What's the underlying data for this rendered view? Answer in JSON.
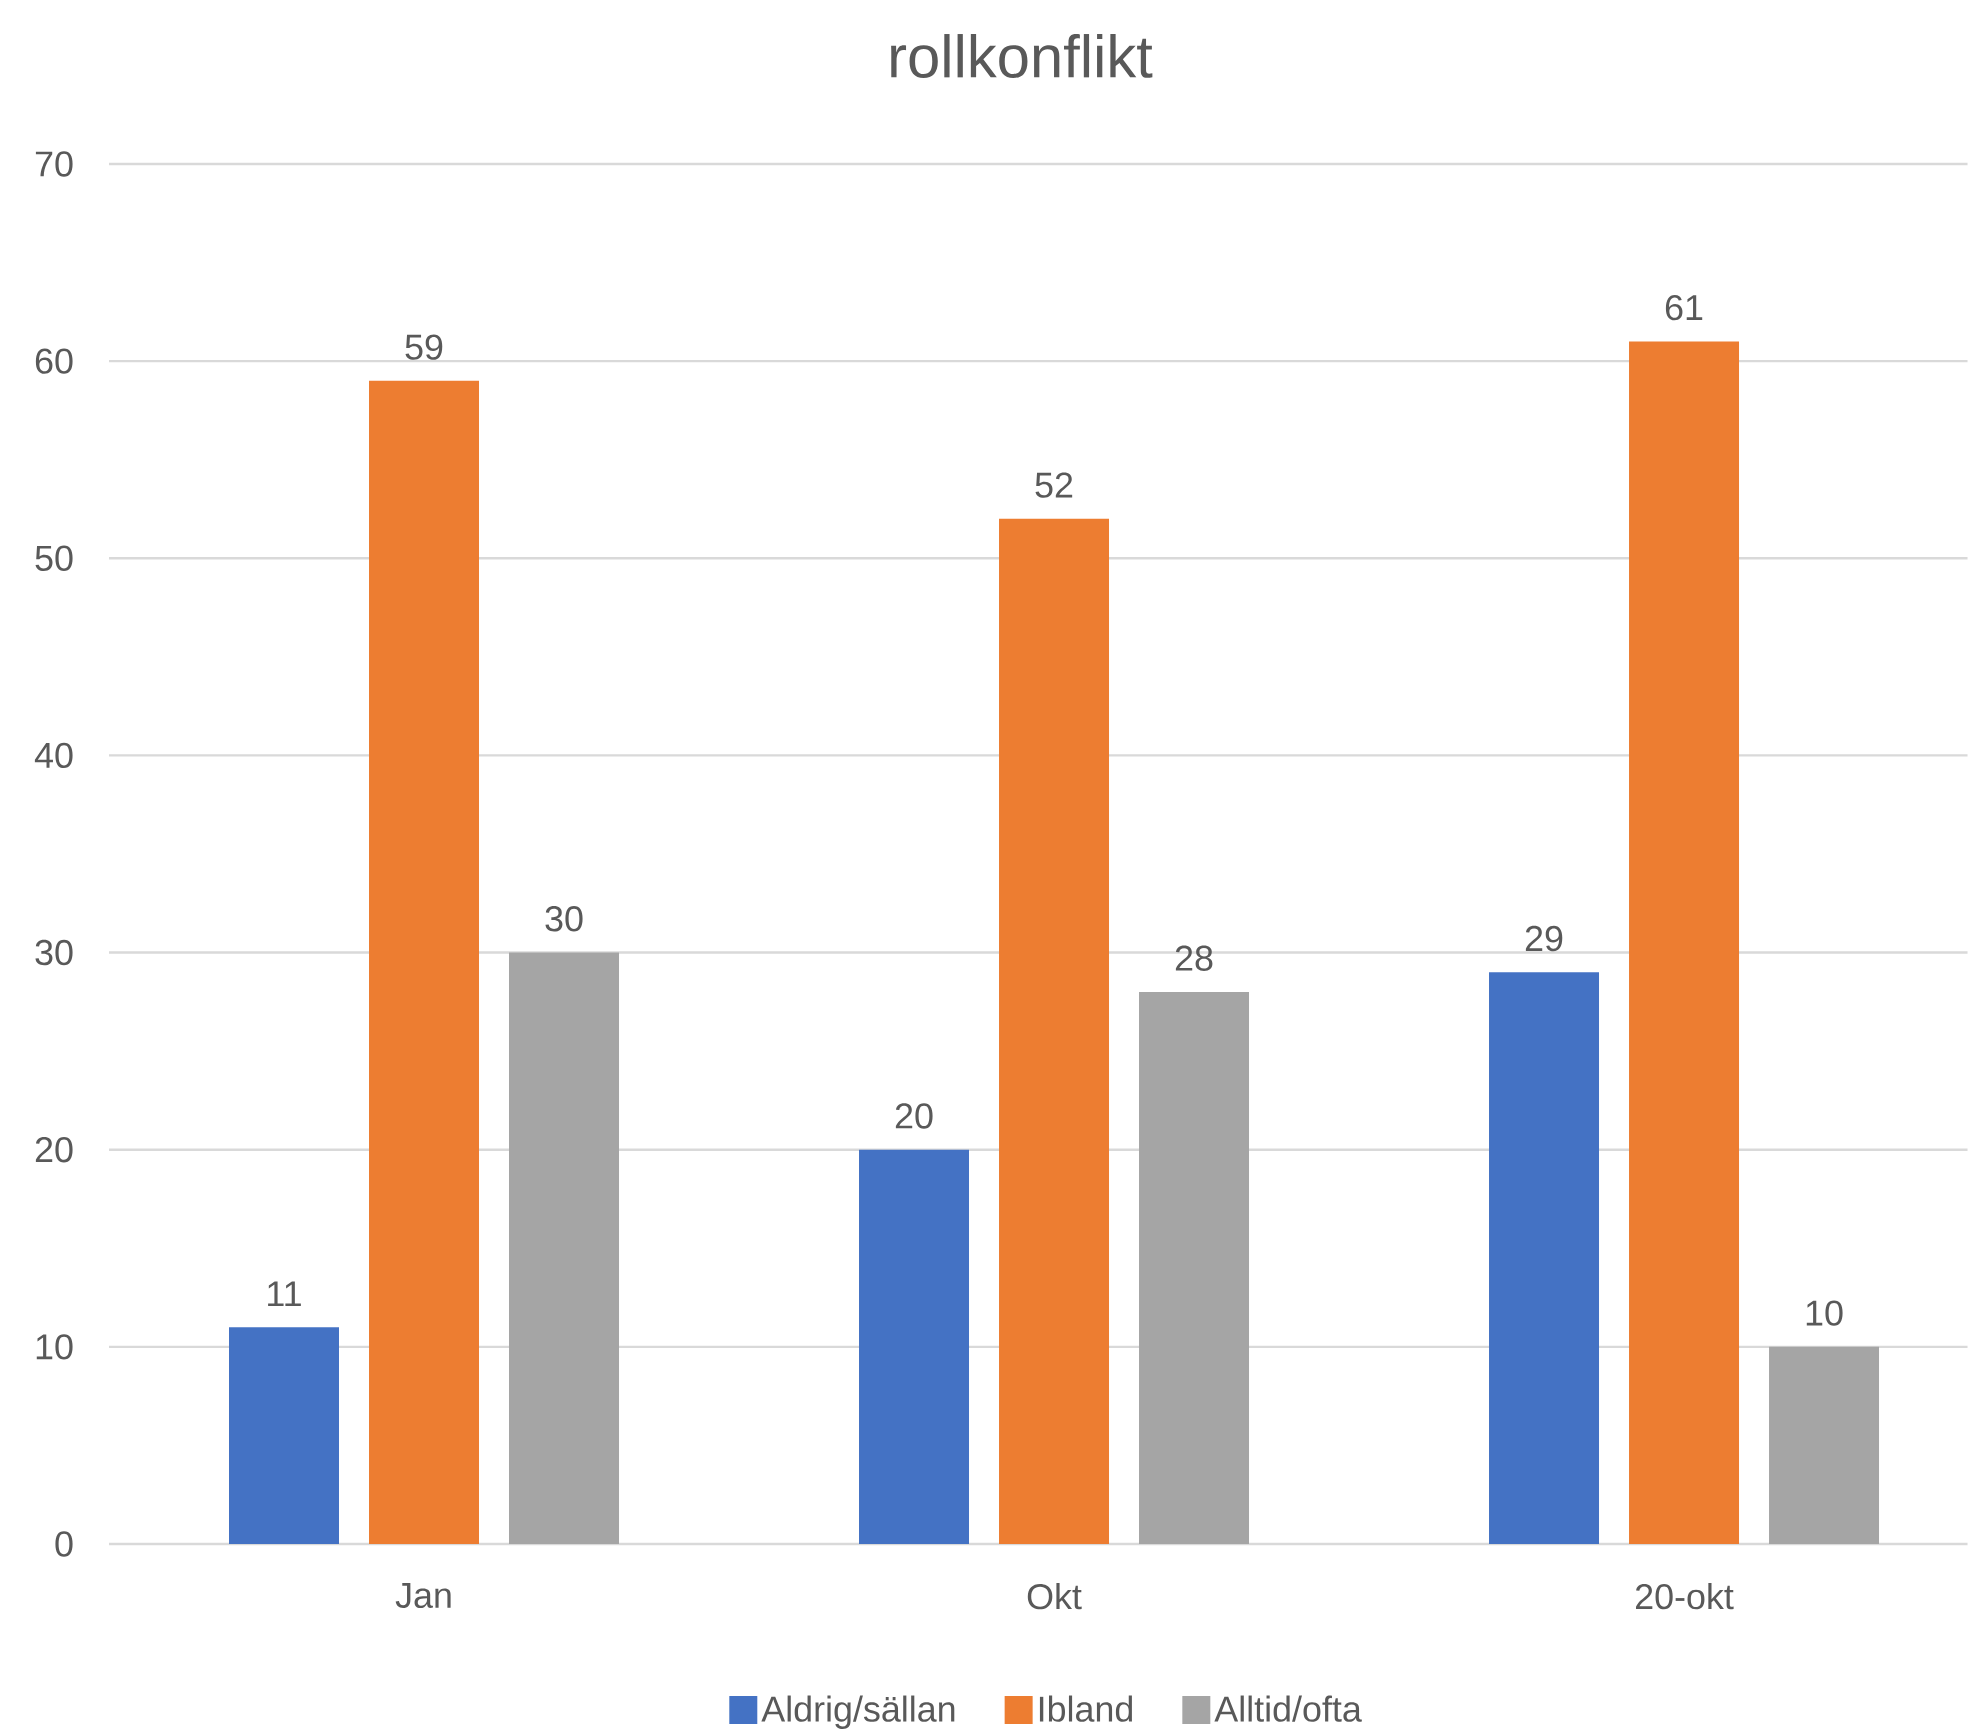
{
  "chart_data": {
    "type": "bar",
    "title": "rollkonflikt",
    "categories": [
      "Jan",
      "Okt",
      "20-okt"
    ],
    "series": [
      {
        "name": "Aldrig/sällan",
        "color": "#4472c4",
        "values": [
          11,
          20,
          29
        ]
      },
      {
        "name": "Ibland",
        "color": "#ed7d31",
        "values": [
          59,
          52,
          61
        ]
      },
      {
        "name": "Alltid/ofta",
        "color": "#a5a5a5",
        "values": [
          30,
          28,
          10
        ]
      }
    ],
    "ylim": [
      0,
      70
    ],
    "yticks": [
      0,
      10,
      20,
      30,
      40,
      50,
      60,
      70
    ],
    "grid": "y",
    "legend": "bottom",
    "data_labels": true
  }
}
